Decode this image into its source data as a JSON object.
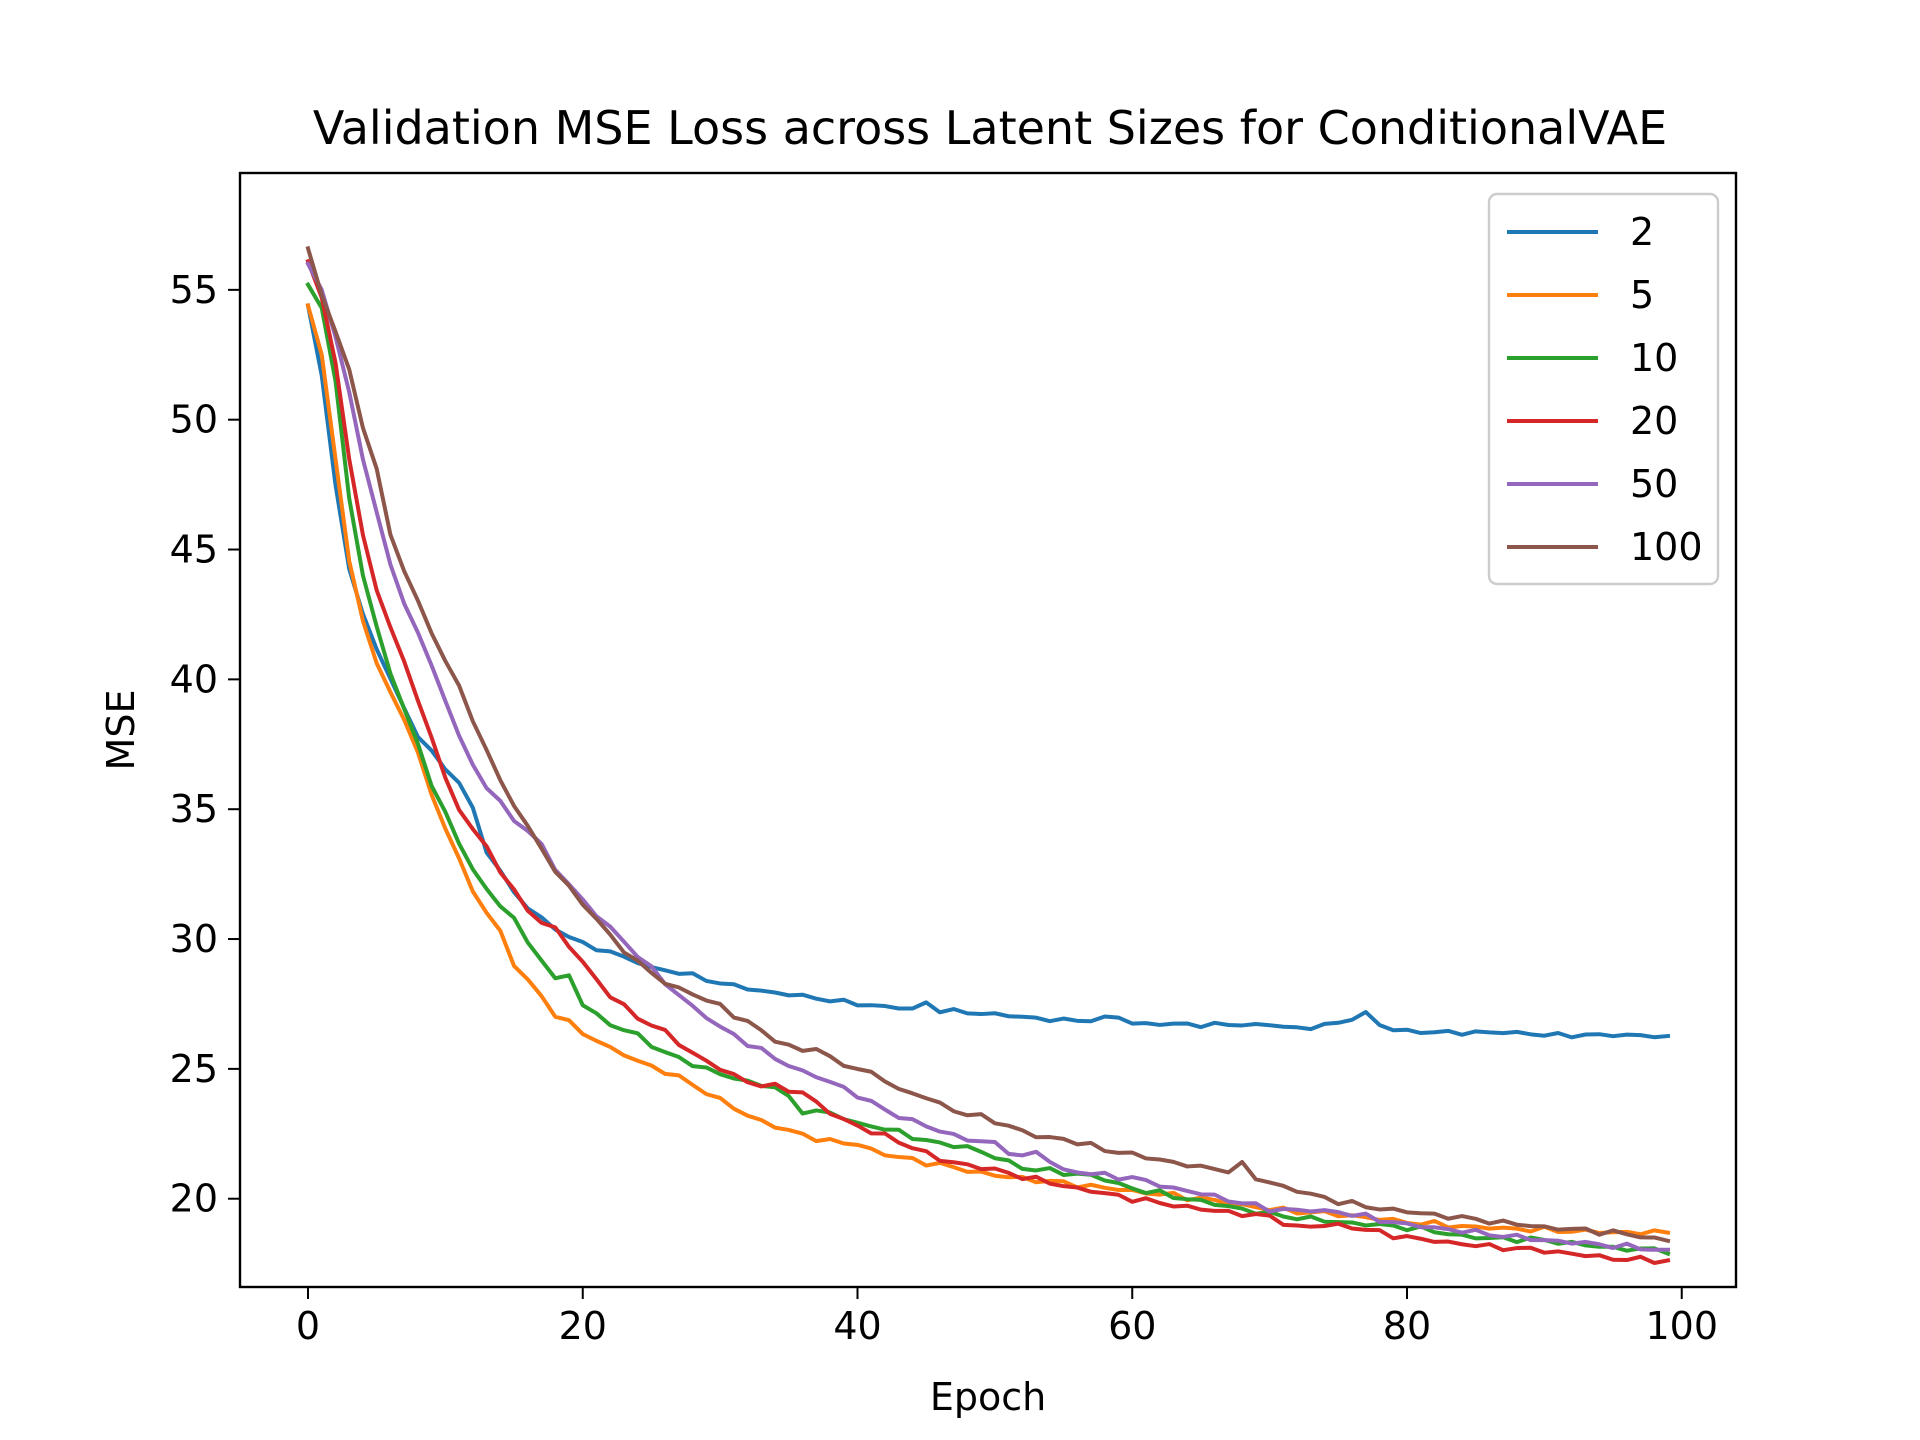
{
  "chart_data": {
    "type": "line",
    "title": "Validation MSE Loss across Latent Sizes for ConditionalVAE",
    "xlabel": "Epoch",
    "ylabel": "MSE",
    "xlim": [
      -4.95,
      103.95
    ],
    "ylim": [
      16.6,
      59.5
    ],
    "xticks": [
      0,
      20,
      40,
      60,
      80,
      100
    ],
    "yticks": [
      20,
      25,
      30,
      35,
      40,
      45,
      50,
      55
    ],
    "grid": false,
    "legend_position": "top-right",
    "series": [
      {
        "name": "2",
        "color": "#1f77b4",
        "anchors": [
          [
            0,
            54.4
          ],
          [
            1,
            51.7
          ],
          [
            2,
            47.5
          ],
          [
            3,
            44.2
          ],
          [
            4,
            42.5
          ],
          [
            5,
            41.2
          ],
          [
            6,
            40.0
          ],
          [
            7,
            38.9
          ],
          [
            8,
            37.8
          ],
          [
            9,
            37.2
          ],
          [
            10,
            36.6
          ],
          [
            11,
            36.0
          ],
          [
            12,
            35.0
          ],
          [
            13,
            33.4
          ],
          [
            14,
            32.6
          ],
          [
            15,
            31.8
          ],
          [
            16,
            31.2
          ],
          [
            17,
            30.8
          ],
          [
            18,
            30.4
          ],
          [
            20,
            29.8
          ],
          [
            22,
            29.5
          ],
          [
            25,
            28.9
          ],
          [
            28,
            28.6
          ],
          [
            30,
            28.3
          ],
          [
            33,
            28.0
          ],
          [
            36,
            27.8
          ],
          [
            40,
            27.5
          ],
          [
            44,
            27.3
          ],
          [
            45,
            27.55
          ],
          [
            46,
            27.25
          ],
          [
            50,
            27.1
          ],
          [
            54,
            26.9
          ],
          [
            56,
            26.85
          ],
          [
            59,
            27.0
          ],
          [
            60,
            26.75
          ],
          [
            65,
            26.7
          ],
          [
            70,
            26.7
          ],
          [
            72,
            26.55
          ],
          [
            75,
            26.75
          ],
          [
            77,
            27.15
          ],
          [
            78,
            26.7
          ],
          [
            79,
            26.5
          ],
          [
            82,
            26.4
          ],
          [
            85,
            26.4
          ],
          [
            88,
            26.4
          ],
          [
            90,
            26.3
          ],
          [
            92,
            26.3
          ],
          [
            95,
            26.3
          ],
          [
            97,
            26.3
          ],
          [
            99,
            26.2
          ]
        ],
        "jitter": 0.06
      },
      {
        "name": "5",
        "color": "#ff7f0e",
        "anchors": [
          [
            0,
            54.4
          ],
          [
            1,
            52.5
          ],
          [
            2,
            48.5
          ],
          [
            3,
            44.5
          ],
          [
            4,
            42.3
          ],
          [
            5,
            40.6
          ],
          [
            6,
            39.5
          ],
          [
            7,
            38.5
          ],
          [
            8,
            37.1
          ],
          [
            9,
            35.6
          ],
          [
            10,
            34.3
          ],
          [
            11,
            33.0
          ],
          [
            12,
            31.9
          ],
          [
            13,
            31.0
          ],
          [
            14,
            30.3
          ],
          [
            15,
            29.0
          ],
          [
            16,
            28.4
          ],
          [
            17,
            27.8
          ],
          [
            18,
            27.1
          ],
          [
            20,
            26.4
          ],
          [
            22,
            25.8
          ],
          [
            24,
            25.3
          ],
          [
            26,
            24.9
          ],
          [
            28,
            24.4
          ],
          [
            30,
            23.8
          ],
          [
            32,
            23.2
          ],
          [
            35,
            22.6
          ],
          [
            38,
            22.2
          ],
          [
            40,
            22.1
          ],
          [
            42,
            21.7
          ],
          [
            45,
            21.4
          ],
          [
            48,
            21.1
          ],
          [
            50,
            20.9
          ],
          [
            55,
            20.6
          ],
          [
            60,
            20.3
          ],
          [
            65,
            20.0
          ],
          [
            70,
            19.6
          ],
          [
            75,
            19.4
          ],
          [
            80,
            19.1
          ],
          [
            85,
            18.9
          ],
          [
            90,
            18.8
          ],
          [
            95,
            18.7
          ],
          [
            99,
            18.7
          ]
        ],
        "jitter": 0.08
      },
      {
        "name": "10",
        "color": "#2ca02c",
        "anchors": [
          [
            0,
            55.2
          ],
          [
            1,
            54.3
          ],
          [
            2,
            51.5
          ],
          [
            3,
            47.0
          ],
          [
            4,
            44.0
          ],
          [
            5,
            42.0
          ],
          [
            6,
            40.3
          ],
          [
            7,
            38.8
          ],
          [
            8,
            37.5
          ],
          [
            9,
            36.0
          ],
          [
            10,
            34.8
          ],
          [
            11,
            33.7
          ],
          [
            12,
            32.7
          ],
          [
            13,
            31.9
          ],
          [
            14,
            31.3
          ],
          [
            15,
            30.8
          ],
          [
            16,
            29.8
          ],
          [
            17,
            29.3
          ],
          [
            18,
            28.4
          ],
          [
            19,
            28.6
          ],
          [
            20,
            27.5
          ],
          [
            22,
            26.7
          ],
          [
            24,
            26.3
          ],
          [
            26,
            25.6
          ],
          [
            28,
            25.2
          ],
          [
            30,
            24.8
          ],
          [
            32,
            24.5
          ],
          [
            34,
            24.3
          ],
          [
            36,
            23.4
          ],
          [
            38,
            23.3
          ],
          [
            40,
            22.9
          ],
          [
            42,
            22.7
          ],
          [
            44,
            22.4
          ],
          [
            46,
            22.1
          ],
          [
            48,
            22.0
          ],
          [
            50,
            21.6
          ],
          [
            52,
            21.2
          ],
          [
            55,
            21.0
          ],
          [
            57,
            20.9
          ],
          [
            60,
            20.4
          ],
          [
            65,
            19.9
          ],
          [
            70,
            19.4
          ],
          [
            75,
            19.1
          ],
          [
            80,
            18.9
          ],
          [
            85,
            18.5
          ],
          [
            90,
            18.4
          ],
          [
            95,
            18.1
          ],
          [
            99,
            18.0
          ]
        ],
        "jitter": 0.08
      },
      {
        "name": "20",
        "color": "#d62728",
        "anchors": [
          [
            0,
            56.1
          ],
          [
            1,
            54.7
          ],
          [
            2,
            52.2
          ],
          [
            3,
            48.5
          ],
          [
            4,
            45.5
          ],
          [
            5,
            43.5
          ],
          [
            6,
            42.0
          ],
          [
            7,
            40.6
          ],
          [
            8,
            39.3
          ],
          [
            9,
            37.7
          ],
          [
            10,
            36.2
          ],
          [
            11,
            35.0
          ],
          [
            12,
            34.2
          ],
          [
            13,
            33.6
          ],
          [
            14,
            32.6
          ],
          [
            15,
            31.8
          ],
          [
            16,
            31.2
          ],
          [
            17,
            30.6
          ],
          [
            18,
            30.4
          ],
          [
            20,
            29.1
          ],
          [
            22,
            27.8
          ],
          [
            24,
            27.0
          ],
          [
            26,
            26.4
          ],
          [
            28,
            25.6
          ],
          [
            30,
            25.0
          ],
          [
            32,
            24.5
          ],
          [
            34,
            24.3
          ],
          [
            36,
            24.1
          ],
          [
            38,
            23.3
          ],
          [
            40,
            22.8
          ],
          [
            42,
            22.4
          ],
          [
            44,
            22.0
          ],
          [
            46,
            21.5
          ],
          [
            48,
            21.3
          ],
          [
            50,
            21.1
          ],
          [
            55,
            20.5
          ],
          [
            60,
            20.0
          ],
          [
            65,
            19.6
          ],
          [
            70,
            19.3
          ],
          [
            72,
            18.9
          ],
          [
            75,
            19.0
          ],
          [
            78,
            18.7
          ],
          [
            80,
            18.5
          ],
          [
            85,
            18.2
          ],
          [
            90,
            18.0
          ],
          [
            95,
            17.7
          ],
          [
            99,
            17.6
          ]
        ],
        "jitter": 0.08
      },
      {
        "name": "50",
        "color": "#9467bd",
        "anchors": [
          [
            0,
            56.0
          ],
          [
            1,
            55.0
          ],
          [
            2,
            53.2
          ],
          [
            3,
            51.0
          ],
          [
            4,
            48.5
          ],
          [
            5,
            46.5
          ],
          [
            6,
            44.3
          ],
          [
            7,
            43.0
          ],
          [
            8,
            41.8
          ],
          [
            9,
            40.5
          ],
          [
            10,
            39.2
          ],
          [
            11,
            37.8
          ],
          [
            12,
            36.7
          ],
          [
            13,
            35.9
          ],
          [
            14,
            35.2
          ],
          [
            15,
            34.6
          ],
          [
            16,
            34.2
          ],
          [
            17,
            33.6
          ],
          [
            18,
            32.7
          ],
          [
            20,
            31.5
          ],
          [
            22,
            30.4
          ],
          [
            24,
            29.4
          ],
          [
            26,
            28.3
          ],
          [
            28,
            27.4
          ],
          [
            30,
            26.6
          ],
          [
            32,
            26.0
          ],
          [
            34,
            25.4
          ],
          [
            36,
            24.9
          ],
          [
            38,
            24.5
          ],
          [
            40,
            24.0
          ],
          [
            42,
            23.4
          ],
          [
            44,
            23.0
          ],
          [
            46,
            22.6
          ],
          [
            48,
            22.3
          ],
          [
            50,
            22.1
          ],
          [
            52,
            21.6
          ],
          [
            53,
            21.8
          ],
          [
            55,
            21.1
          ],
          [
            58,
            20.9
          ],
          [
            60,
            20.8
          ],
          [
            63,
            20.4
          ],
          [
            65,
            20.2
          ],
          [
            70,
            19.6
          ],
          [
            75,
            19.5
          ],
          [
            80,
            19.0
          ],
          [
            85,
            18.7
          ],
          [
            90,
            18.4
          ],
          [
            95,
            18.2
          ],
          [
            99,
            18.0
          ]
        ],
        "jitter": 0.08
      },
      {
        "name": "100",
        "color": "#8c564b",
        "anchors": [
          [
            0,
            56.6
          ],
          [
            1,
            54.8
          ],
          [
            2,
            53.4
          ],
          [
            3,
            51.9
          ],
          [
            4,
            49.8
          ],
          [
            5,
            48.0
          ],
          [
            6,
            45.6
          ],
          [
            7,
            44.2
          ],
          [
            8,
            43.0
          ],
          [
            9,
            41.8
          ],
          [
            10,
            40.7
          ],
          [
            11,
            39.7
          ],
          [
            12,
            38.5
          ],
          [
            13,
            37.2
          ],
          [
            14,
            36.1
          ],
          [
            15,
            35.2
          ],
          [
            16,
            34.3
          ],
          [
            17,
            33.5
          ],
          [
            18,
            32.6
          ],
          [
            20,
            31.4
          ],
          [
            22,
            30.1
          ],
          [
            24,
            29.1
          ],
          [
            26,
            28.3
          ],
          [
            28,
            27.9
          ],
          [
            30,
            27.4
          ],
          [
            32,
            26.8
          ],
          [
            34,
            26.1
          ],
          [
            36,
            25.7
          ],
          [
            37,
            25.8
          ],
          [
            38,
            25.4
          ],
          [
            40,
            25.0
          ],
          [
            42,
            24.6
          ],
          [
            43,
            24.2
          ],
          [
            45,
            23.9
          ],
          [
            47,
            23.4
          ],
          [
            50,
            23.0
          ],
          [
            53,
            22.4
          ],
          [
            55,
            22.3
          ],
          [
            58,
            21.9
          ],
          [
            60,
            21.7
          ],
          [
            63,
            21.4
          ],
          [
            65,
            21.2
          ],
          [
            67,
            21.1
          ],
          [
            68,
            21.3
          ],
          [
            69,
            20.8
          ],
          [
            72,
            20.3
          ],
          [
            75,
            19.9
          ],
          [
            77,
            19.7
          ],
          [
            80,
            19.5
          ],
          [
            85,
            19.2
          ],
          [
            90,
            18.9
          ],
          [
            95,
            18.7
          ],
          [
            99,
            18.4
          ]
        ],
        "jitter": 0.08
      }
    ]
  }
}
